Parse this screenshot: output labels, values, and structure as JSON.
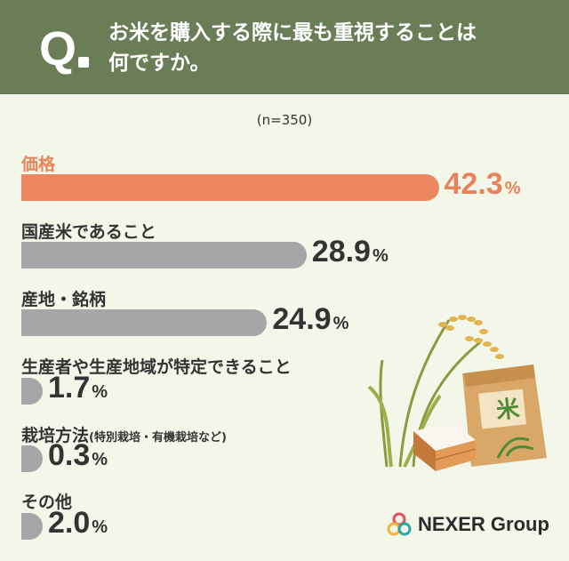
{
  "header": {
    "q_mark": "Q",
    "title_line1": "お米を購入する際に最も重視することは",
    "title_line2": "何ですか。"
  },
  "sample_label": "(n=350)",
  "chart_data": {
    "type": "bar",
    "orientation": "horizontal",
    "categories": [
      "価格",
      "国産米であること",
      "産地・銘柄",
      "生産者や生産地域が特定できること",
      "栽培方法",
      "その他"
    ],
    "category_notes": [
      "",
      "",
      "",
      "",
      "(特別栽培・有機栽培など)",
      ""
    ],
    "values": [
      42.3,
      28.9,
      24.9,
      1.7,
      0.3,
      2.0
    ],
    "value_labels": [
      "42.3",
      "28.9",
      "24.9",
      "1.7",
      "0.3",
      "2.0"
    ],
    "unit": "%",
    "highlight_color": "#ec8761",
    "bar_color": "#a6a6a9"
  },
  "brand": {
    "name": "NEXER Group"
  },
  "colors": {
    "header_bg": "#6b7d57",
    "background": "#f3f7ea",
    "accent": "#e8825a"
  }
}
